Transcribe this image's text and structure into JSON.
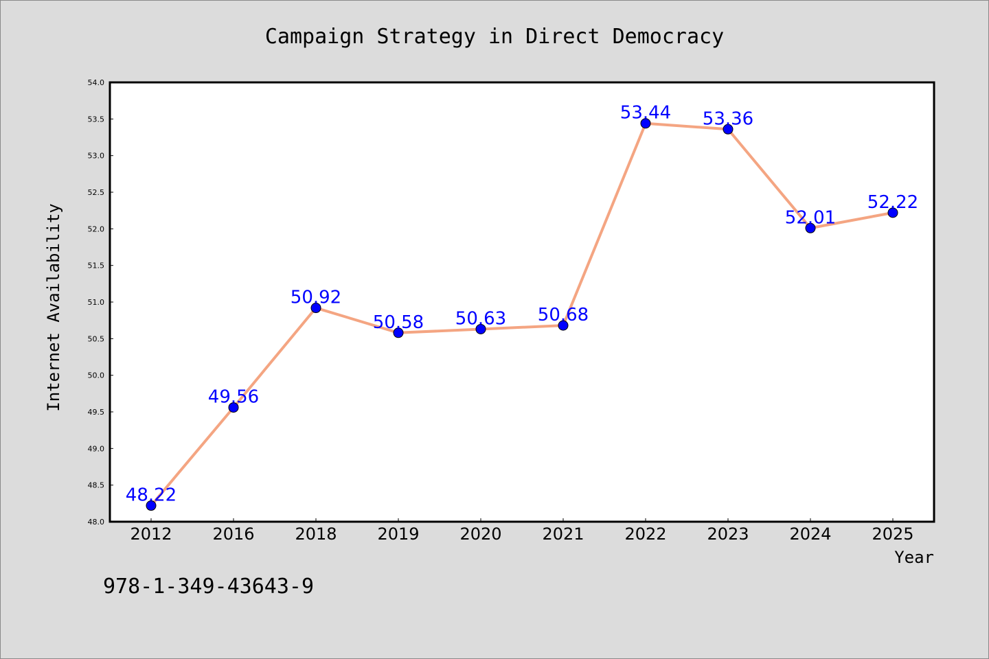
{
  "chart_data": {
    "type": "line",
    "title": "Campaign Strategy in Direct Democracy",
    "xlabel": "Year",
    "ylabel": "Internet Availability",
    "categories": [
      "2012",
      "2016",
      "2018",
      "2019",
      "2020",
      "2021",
      "2022",
      "2023",
      "2024",
      "2025"
    ],
    "values": [
      48.22,
      49.56,
      50.92,
      50.58,
      50.63,
      50.68,
      53.44,
      53.36,
      52.01,
      52.22
    ],
    "data_labels": [
      "48.22",
      "49.56",
      "50.92",
      "50.58",
      "50.63",
      "50.68",
      "53.44",
      "53.36",
      "52.01",
      "52.22"
    ],
    "ylim": [
      48.0,
      54.0
    ],
    "yticks": [
      "48.0",
      "48.5",
      "49.0",
      "49.5",
      "50.0",
      "50.5",
      "51.0",
      "51.5",
      "52.0",
      "52.5",
      "53.0",
      "53.5",
      "54.0"
    ],
    "grid": false,
    "legend": "none",
    "colors": {
      "line": "#f4a582",
      "marker": "#0000ff",
      "label": "#0000ff",
      "background": "#dcdcdc",
      "plot_background": "#ffffff"
    }
  },
  "footer_note": "978-1-349-43643-9"
}
